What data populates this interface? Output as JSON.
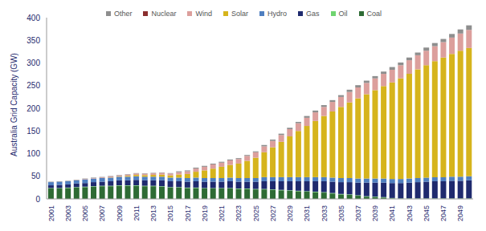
{
  "chart_data": {
    "type": "bar",
    "stacked": true,
    "legend": "top",
    "y_label": "Australia Grid Capacity (GW)",
    "categories": [
      "2001",
      null,
      "2003",
      null,
      "2005",
      null,
      "2007",
      null,
      "2009",
      null,
      "2011",
      null,
      "2013",
      null,
      "2015",
      null,
      "2017",
      null,
      "2019",
      null,
      "2021",
      null,
      "2023",
      null,
      "2025",
      null,
      "2027",
      null,
      "2029",
      null,
      "2031",
      null,
      "2033",
      null,
      "2035",
      null,
      "2037",
      null,
      "2039",
      null,
      "2041",
      null,
      "2043",
      null,
      "2045",
      null,
      "2047",
      null,
      "2049",
      null
    ],
    "ylim": [
      0,
      400
    ],
    "yticks": [
      0,
      50,
      100,
      150,
      200,
      250,
      300,
      350,
      400
    ],
    "series": [
      {
        "name": "Coal",
        "color": "#2e6b34",
        "values": [
          23,
          23,
          24,
          25,
          26,
          27,
          28,
          28,
          29,
          29,
          29,
          28,
          28,
          27,
          25,
          25,
          24,
          24,
          23,
          23,
          23,
          23,
          22,
          22,
          21,
          21,
          20,
          19,
          18,
          17,
          16,
          15,
          14,
          12,
          10,
          9,
          7,
          5,
          4,
          3,
          1,
          0,
          0,
          0,
          0,
          0,
          0,
          0,
          0,
          0
        ]
      },
      {
        "name": "Oil",
        "color": "#6fd46f",
        "values": [
          1,
          1,
          1,
          1,
          1,
          1,
          1,
          1,
          1,
          1,
          1,
          1,
          1,
          1,
          1,
          1,
          1,
          1,
          1,
          1,
          1,
          1,
          1,
          1,
          1,
          1,
          1,
          1,
          1,
          1,
          1,
          1,
          1,
          1,
          1,
          1,
          1,
          1,
          1,
          1,
          1,
          1,
          1,
          1,
          1,
          1,
          1,
          1,
          1,
          1
        ]
      },
      {
        "name": "Gas",
        "color": "#1f2a6e",
        "values": [
          6,
          7,
          7,
          8,
          8,
          9,
          9,
          10,
          11,
          11,
          12,
          12,
          12,
          13,
          13,
          13,
          13,
          14,
          14,
          14,
          14,
          15,
          15,
          15,
          16,
          17,
          18,
          19,
          20,
          21,
          22,
          23,
          24,
          25,
          26,
          27,
          28,
          30,
          31,
          32,
          33,
          34,
          35,
          36,
          37,
          38,
          38,
          39,
          39,
          40
        ]
      },
      {
        "name": "Hydro",
        "color": "#4f7fc0",
        "values": [
          7,
          7,
          7,
          7,
          8,
          8,
          8,
          8,
          8,
          8,
          8,
          8,
          8,
          8,
          8,
          8,
          8,
          8,
          8,
          8,
          8,
          8,
          8,
          8,
          8,
          9,
          9,
          9,
          9,
          9,
          9,
          9,
          9,
          9,
          9,
          9,
          9,
          9,
          9,
          9,
          9,
          9,
          9,
          9,
          9,
          9,
          9,
          9,
          9,
          9
        ]
      },
      {
        "name": "Solar",
        "color": "#d6b41c",
        "values": [
          0,
          0,
          0,
          0,
          0,
          0,
          0,
          0.5,
          1,
          2,
          3,
          3.5,
          4,
          4.5,
          5,
          7,
          9,
          13,
          17,
          21,
          25,
          28,
          32,
          38,
          45,
          55,
          66,
          78,
          90,
          102,
          113,
          124,
          135,
          146,
          157,
          167,
          177,
          186,
          195,
          204,
          213,
          222,
          231,
          240,
          248,
          256,
          264,
          271,
          278,
          283
        ]
      },
      {
        "name": "Wind",
        "color": "#dc9f9c",
        "values": [
          0,
          0,
          0,
          0.5,
          1,
          1,
          1.5,
          2,
          2,
          2.5,
          3,
          3,
          3.5,
          4,
          4,
          5,
          6,
          7,
          8,
          9,
          9,
          10,
          10,
          11,
          12,
          13,
          14,
          15,
          16,
          17,
          18,
          19,
          20,
          21,
          22,
          23,
          24,
          25,
          26,
          27,
          28,
          29,
          30,
          31,
          32,
          33,
          34,
          36,
          38,
          40
        ]
      },
      {
        "name": "Nuclear",
        "color": "#8b2f2f",
        "values": [
          0,
          0,
          0,
          0,
          0,
          0,
          0,
          0,
          0,
          0,
          0,
          0,
          0,
          0,
          0,
          0,
          0,
          0,
          0,
          0,
          0,
          0,
          0,
          0,
          0,
          0,
          0,
          0,
          0,
          0,
          0,
          0,
          0,
          0,
          0,
          0,
          0,
          0,
          0,
          0,
          0,
          0,
          0,
          0,
          0,
          0,
          0,
          0,
          0,
          0
        ]
      },
      {
        "name": "Other",
        "color": "#8e8e8e",
        "values": [
          1,
          1,
          1,
          1,
          1,
          1,
          1,
          1,
          1,
          1,
          1,
          1,
          1,
          1,
          1,
          2,
          2,
          2,
          2,
          2,
          2,
          2,
          2,
          2,
          2,
          3,
          3,
          3,
          3,
          3,
          4,
          4,
          4,
          4,
          4,
          5,
          5,
          5,
          5,
          5,
          6,
          6,
          6,
          6,
          7,
          7,
          7,
          8,
          9,
          10
        ]
      }
    ]
  }
}
